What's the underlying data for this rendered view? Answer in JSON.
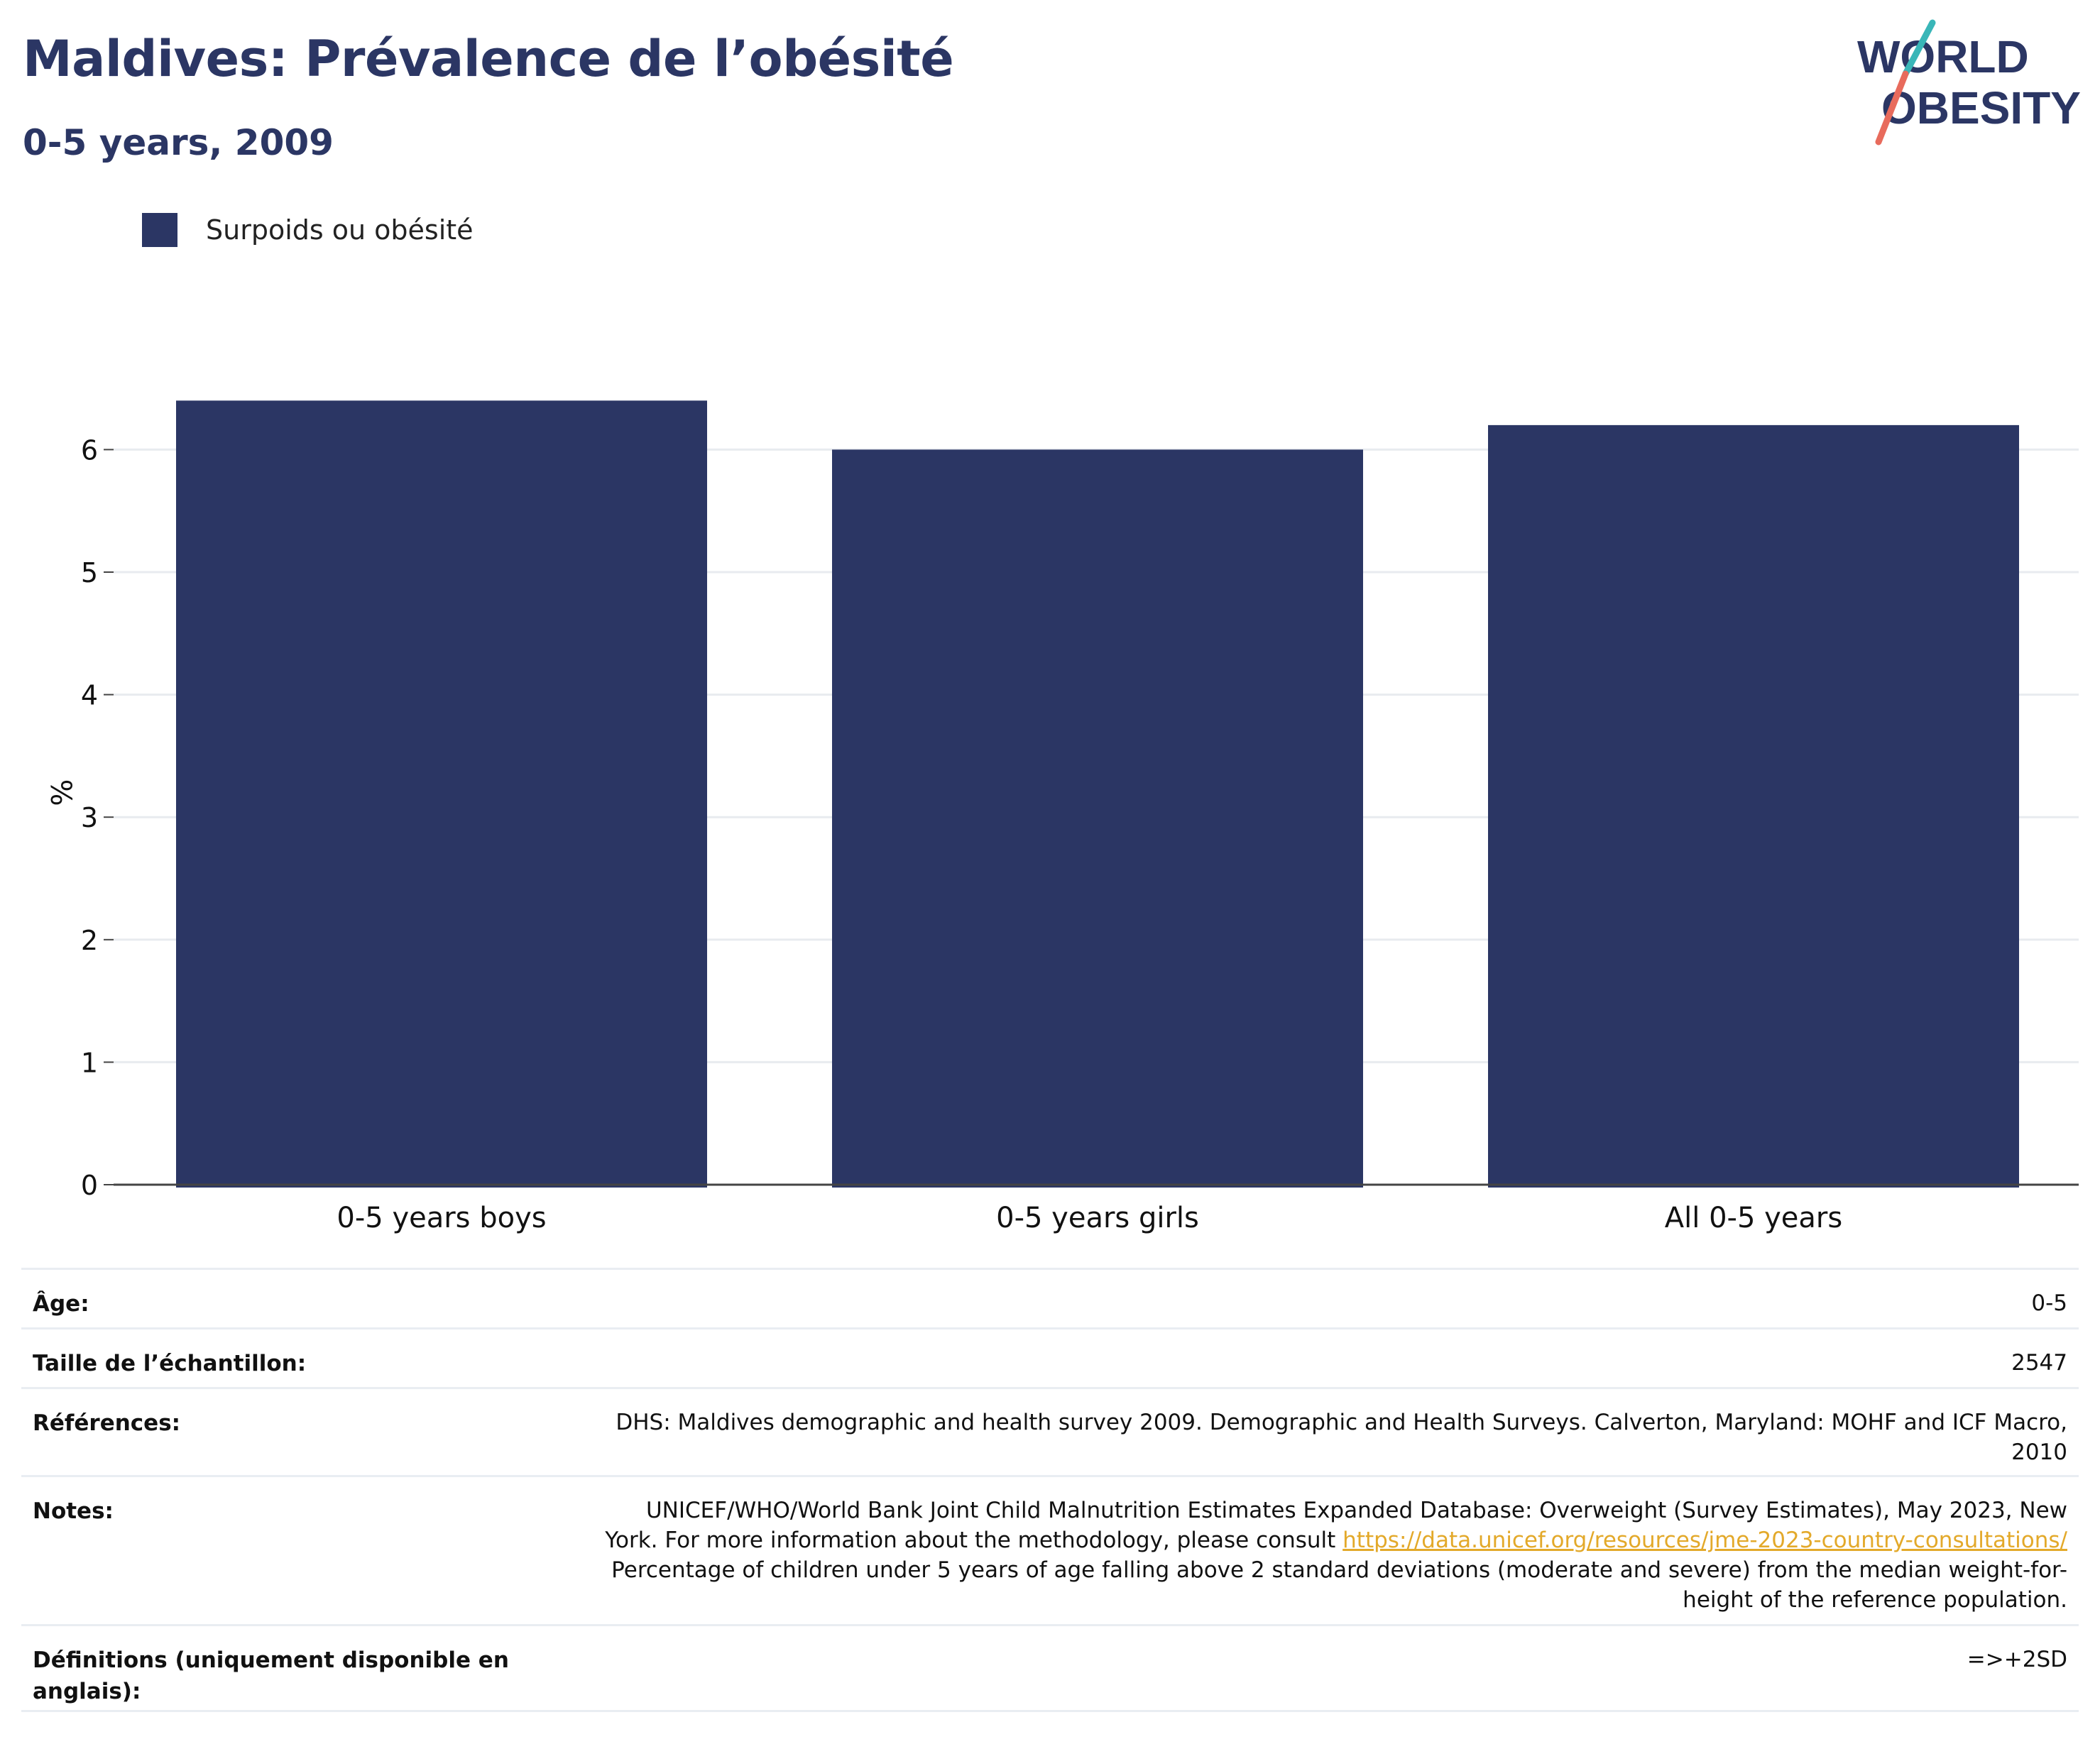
{
  "header": {
    "title": "Maldives: Prévalence de l’obésité",
    "subtitle": "0-5 years, 2009"
  },
  "logo": {
    "line1": "WORLD",
    "line2": "OBESITY",
    "colors": {
      "text": "#2b3664",
      "slash_teal": "#39b6b8",
      "slash_coral": "#e86b5c"
    }
  },
  "chart_data": {
    "type": "bar",
    "title": "",
    "categories": [
      "0-5 years boys",
      "0-5 years girls",
      "All 0-5 years"
    ],
    "series": [
      {
        "name": "Surpoids ou obésité",
        "values": [
          6.4,
          6.0,
          6.2
        ],
        "color": "#2b3664"
      }
    ],
    "xlabel": "",
    "ylabel": "%",
    "ylim": [
      0,
      7
    ],
    "yticks": [
      0,
      1,
      2,
      3,
      4,
      5,
      6
    ],
    "grid": true,
    "legend_position": "top-left"
  },
  "info": {
    "age": {
      "label": "Âge:",
      "value": "0-5"
    },
    "sample": {
      "label": "Taille de l’échantillon:",
      "value": "2547"
    },
    "refs": {
      "label": "Références:",
      "line1": "DHS: Maldives demographic and health survey 2009. Demographic and Health Surveys. Calverton, Maryland: MOHF and ICF Macro,",
      "line2": "2010"
    },
    "notes": {
      "label": "Notes:",
      "line1": "UNICEF/WHO/World Bank Joint Child Malnutrition Estimates Expanded Database: Overweight (Survey Estimates), May 2023, New",
      "line2_prefix": "York. For more information about the methodology, please consult ",
      "link": "https://data.unicef.org/resources/jme-2023-country-consultations/",
      "line3": "Percentage of children under 5 years of age falling above 2 standard deviations (moderate and severe) from the median weight-for-",
      "line4": "height of the reference population."
    },
    "defs": {
      "label_line1": "Définitions (uniquement disponible en",
      "label_line2": "anglais):",
      "value": "=>+2SD"
    }
  }
}
